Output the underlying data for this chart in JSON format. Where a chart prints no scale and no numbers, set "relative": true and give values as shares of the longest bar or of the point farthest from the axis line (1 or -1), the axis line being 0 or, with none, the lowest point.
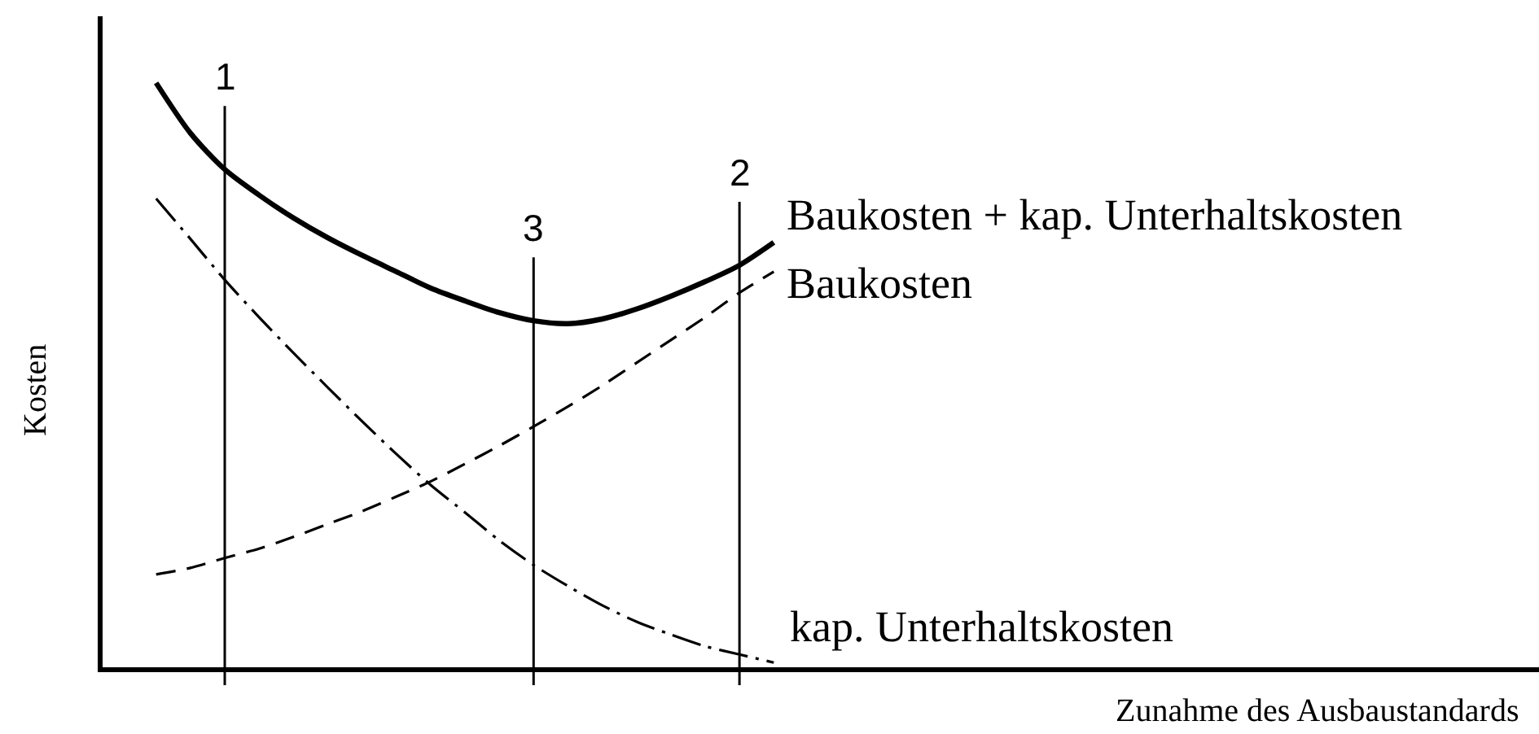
{
  "chart_data": {
    "type": "line",
    "relative": true,
    "ylabel": "Kosten",
    "grid": "x",
    "categories": [
      null,
      null,
      null,
      null,
      null,
      null,
      null,
      null,
      null,
      null,
      null,
      null,
      null,
      null,
      null,
      null,
      null,
      null,
      null
    ],
    "series": [
      {
        "name": "Baukosten + kap. Unterhaltskosten",
        "color": "#000000",
        "line_style": "solid",
        "values": [
          1.0,
          0.914,
          0.852,
          0.808,
          0.769,
          0.735,
          0.705,
          0.677,
          0.649,
          0.627,
          0.607,
          0.593,
          0.588,
          0.596,
          0.613,
          0.635,
          0.66,
          0.688,
          0.727
        ]
      },
      {
        "name": "Baukosten",
        "color": "#000000",
        "line_style": "dashed",
        "values": [
          0.159,
          0.17,
          0.187,
          0.203,
          0.223,
          0.245,
          0.267,
          0.292,
          0.318,
          0.348,
          0.379,
          0.412,
          0.446,
          0.482,
          0.521,
          0.56,
          0.599,
          0.641,
          0.677
        ]
      },
      {
        "name": "kap. Unterhaltskosten",
        "color": "#000000",
        "line_style": "dashdot",
        "values": [
          0.802,
          0.733,
          0.663,
          0.599,
          0.538,
          0.479,
          0.421,
          0.365,
          0.312,
          0.265,
          0.217,
          0.175,
          0.139,
          0.106,
          0.078,
          0.056,
          0.036,
          0.022,
          0.008
        ]
      }
    ],
    "annotations": [
      "1",
      "3",
      "2",
      "Zunahme des Ausbaustandards"
    ]
  }
}
